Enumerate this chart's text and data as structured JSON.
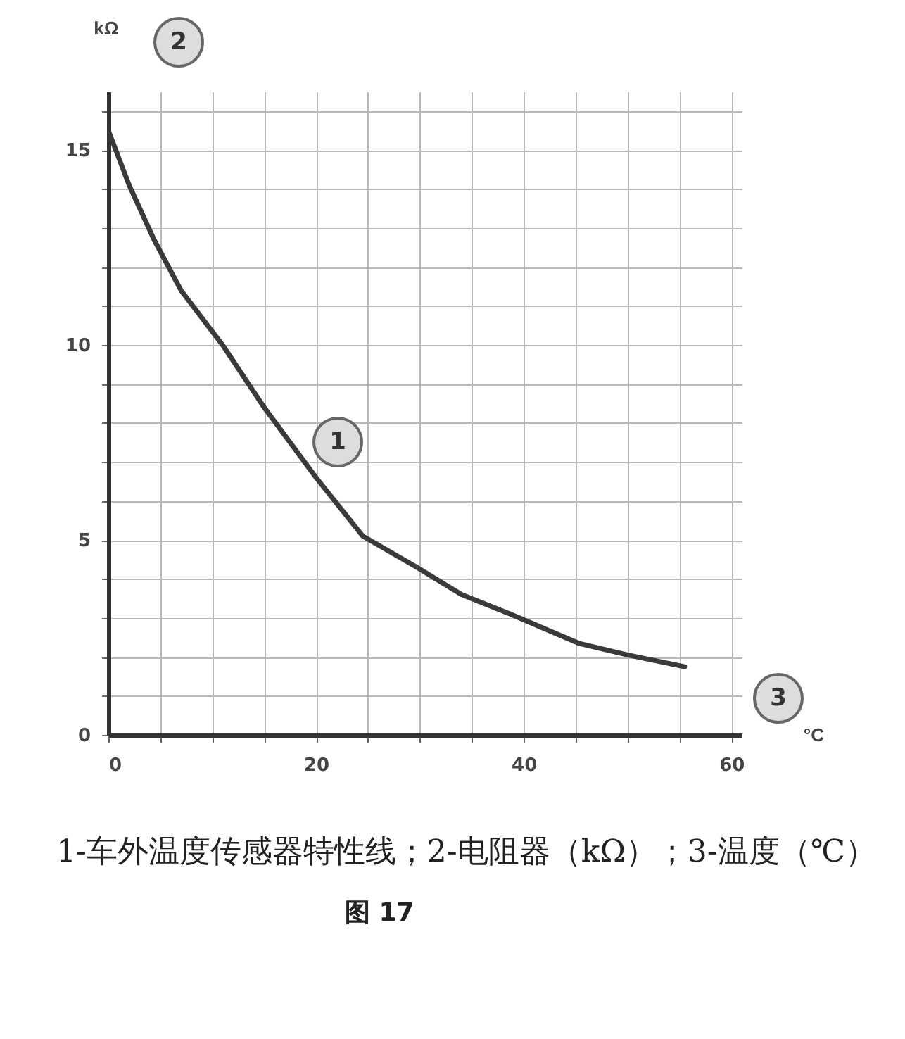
{
  "chart_data": {
    "type": "line",
    "xlabel": "°C",
    "ylabel": "kΩ",
    "xlim": [
      0,
      61
    ],
    "ylim": [
      0,
      16.5
    ],
    "xticks": [
      0,
      {
        "value": 5,
        "label": null
      },
      {
        "value": 10,
        "label": null
      },
      {
        "value": 15,
        "label": null
      },
      20,
      {
        "value": 25,
        "label": null
      },
      {
        "value": 30,
        "label": null
      },
      {
        "value": 35,
        "label": null
      },
      40,
      {
        "value": 45,
        "label": null
      },
      {
        "value": 50,
        "label": null
      },
      {
        "value": 55,
        "label": null
      },
      60
    ],
    "yticks": [
      0,
      {
        "value": 1,
        "label": null
      },
      {
        "value": 2,
        "label": null
      },
      {
        "value": 3,
        "label": null
      },
      {
        "value": 4,
        "label": null
      },
      5,
      {
        "value": 6,
        "label": null
      },
      {
        "value": 7,
        "label": null
      },
      {
        "value": 8,
        "label": null
      },
      {
        "value": 9,
        "label": null
      },
      10,
      {
        "value": 11,
        "label": null
      },
      {
        "value": 12,
        "label": null
      },
      {
        "value": 13,
        "label": null
      },
      {
        "value": 14,
        "label": null
      },
      15,
      {
        "value": 16,
        "label": null
      }
    ],
    "grid": true,
    "series": [
      {
        "color": "#3a3a3a",
        "x": [
          0,
          2,
          4.4,
          7,
          11,
          15,
          20,
          24.5,
          29.7,
          34,
          38.7,
          45.3,
          50,
          55.5
        ],
        "values": [
          15.5,
          14.1,
          12.7,
          11.4,
          10,
          8.4,
          6.6,
          5.1,
          4.3,
          3.6,
          3.1,
          2.35,
          2.05,
          1.75
        ]
      }
    ],
    "annotations": [
      "1",
      "2",
      "3",
      "1-车外温度传感器特性线；2-电阻器（kΩ）；3-温度（℃）",
      "图 17"
    ]
  }
}
